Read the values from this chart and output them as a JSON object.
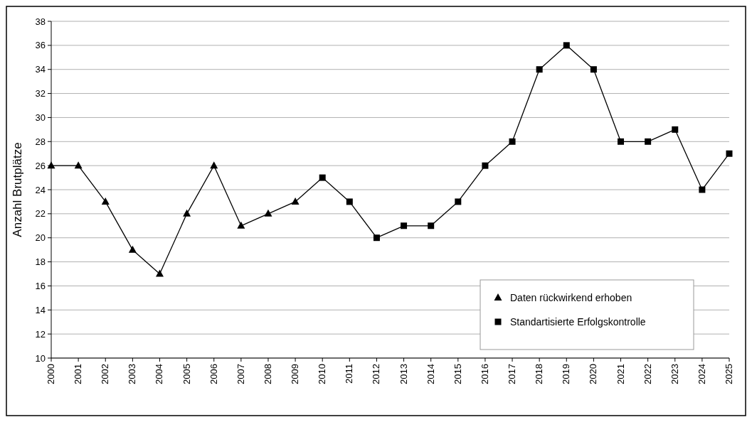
{
  "chart_data": {
    "type": "line",
    "ylabel": "Anzahl Brutplätze",
    "categories": [
      "2000",
      "2001",
      "2002",
      "2003",
      "2004",
      "2005",
      "2006",
      "2007",
      "2008",
      "2009",
      "2010",
      "2011",
      "2012",
      "2013",
      "2014",
      "2015",
      "2016",
      "2017",
      "2018",
      "2019",
      "2020",
      "2021",
      "2022",
      "2023",
      "2024",
      "2025"
    ],
    "series": [
      {
        "color": "#000000",
        "marker": "none",
        "values": [
          26,
          26,
          23,
          19,
          17,
          22,
          26,
          21,
          22,
          23,
          25,
          23,
          20,
          21,
          21,
          23,
          26,
          28,
          34,
          36,
          34,
          28,
          28,
          29,
          24,
          27
        ]
      },
      {
        "type": "scatter",
        "name": "Daten rückwirkend erhoben",
        "color": "#000000",
        "marker": "triangle",
        "values": [
          26,
          26,
          23,
          19,
          17,
          22,
          26,
          21,
          22,
          23,
          null,
          null,
          null,
          null,
          null,
          null,
          null,
          null,
          null,
          null,
          null,
          null,
          null,
          null,
          null,
          null
        ]
      },
      {
        "type": "scatter",
        "name": "Standartisierte Erfolgskontrolle",
        "color": "#000000",
        "marker": "square",
        "values": [
          null,
          null,
          null,
          null,
          null,
          null,
          null,
          null,
          null,
          null,
          25,
          23,
          20,
          21,
          21,
          23,
          26,
          28,
          34,
          36,
          34,
          28,
          28,
          29,
          24,
          27
        ]
      }
    ],
    "ylim": [
      10,
      38
    ],
    "yticks": [
      10,
      12,
      14,
      16,
      18,
      20,
      22,
      24,
      26,
      28,
      30,
      32,
      34,
      36,
      38
    ],
    "grid": "y",
    "legend": "bottom right"
  }
}
